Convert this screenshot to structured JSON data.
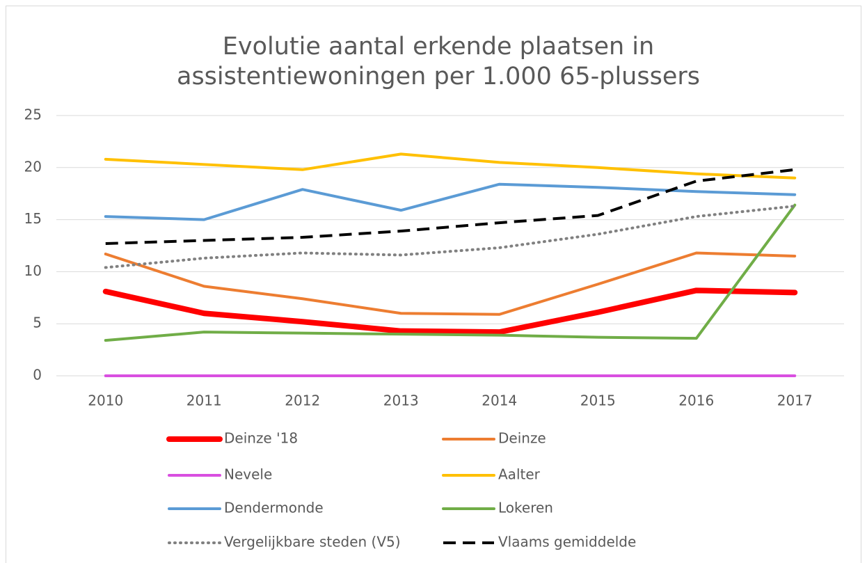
{
  "chart_data": {
    "type": "line",
    "title": [
      "Evolutie aantal erkende plaatsen in",
      "assistentiewoningen per 1.000 65-plussers"
    ],
    "categories": [
      "2010",
      "2011",
      "2012",
      "2013",
      "2014",
      "2015",
      "2016",
      "2017"
    ],
    "ylim": [
      0,
      25
    ],
    "yticks": [
      0,
      5,
      10,
      15,
      20,
      25
    ],
    "grid": true,
    "legend": "bottom",
    "series": [
      {
        "name": "Deinze '18",
        "color": "#ff0000",
        "style": "bold",
        "values": [
          8.1,
          6.0,
          5.2,
          4.3,
          4.2,
          6.1,
          8.2,
          8.0
        ]
      },
      {
        "name": "Deinze",
        "color": "#ed7d31",
        "style": "solid",
        "values": [
          11.7,
          8.6,
          7.4,
          6.0,
          5.9,
          8.8,
          11.8,
          11.5
        ]
      },
      {
        "name": "Nevele",
        "color": "#d94fe0",
        "style": "solid",
        "values": [
          0,
          0,
          0,
          0,
          0,
          0,
          0,
          0
        ]
      },
      {
        "name": "Aalter",
        "color": "#ffc000",
        "style": "solid",
        "values": [
          20.8,
          20.3,
          19.8,
          21.3,
          20.5,
          20.0,
          19.4,
          19.0
        ]
      },
      {
        "name": "Dendermonde",
        "color": "#5b9bd5",
        "style": "solid",
        "values": [
          15.3,
          15.0,
          17.9,
          15.9,
          18.4,
          18.1,
          17.7,
          17.4
        ]
      },
      {
        "name": "Lokeren",
        "color": "#70ad47",
        "style": "solid",
        "values": [
          3.4,
          4.2,
          4.1,
          4.0,
          3.9,
          3.7,
          3.6,
          16.4
        ]
      },
      {
        "name": "Vergelijkbare steden (V5)",
        "color": "#808080",
        "style": "dotted",
        "values": [
          10.4,
          11.3,
          11.8,
          11.6,
          12.3,
          13.6,
          15.3,
          16.3
        ]
      },
      {
        "name": "Vlaams gemiddelde",
        "color": "#000000",
        "style": "dashed",
        "values": [
          12.7,
          13.0,
          13.3,
          13.9,
          14.7,
          15.4,
          18.7,
          19.8
        ]
      }
    ]
  }
}
